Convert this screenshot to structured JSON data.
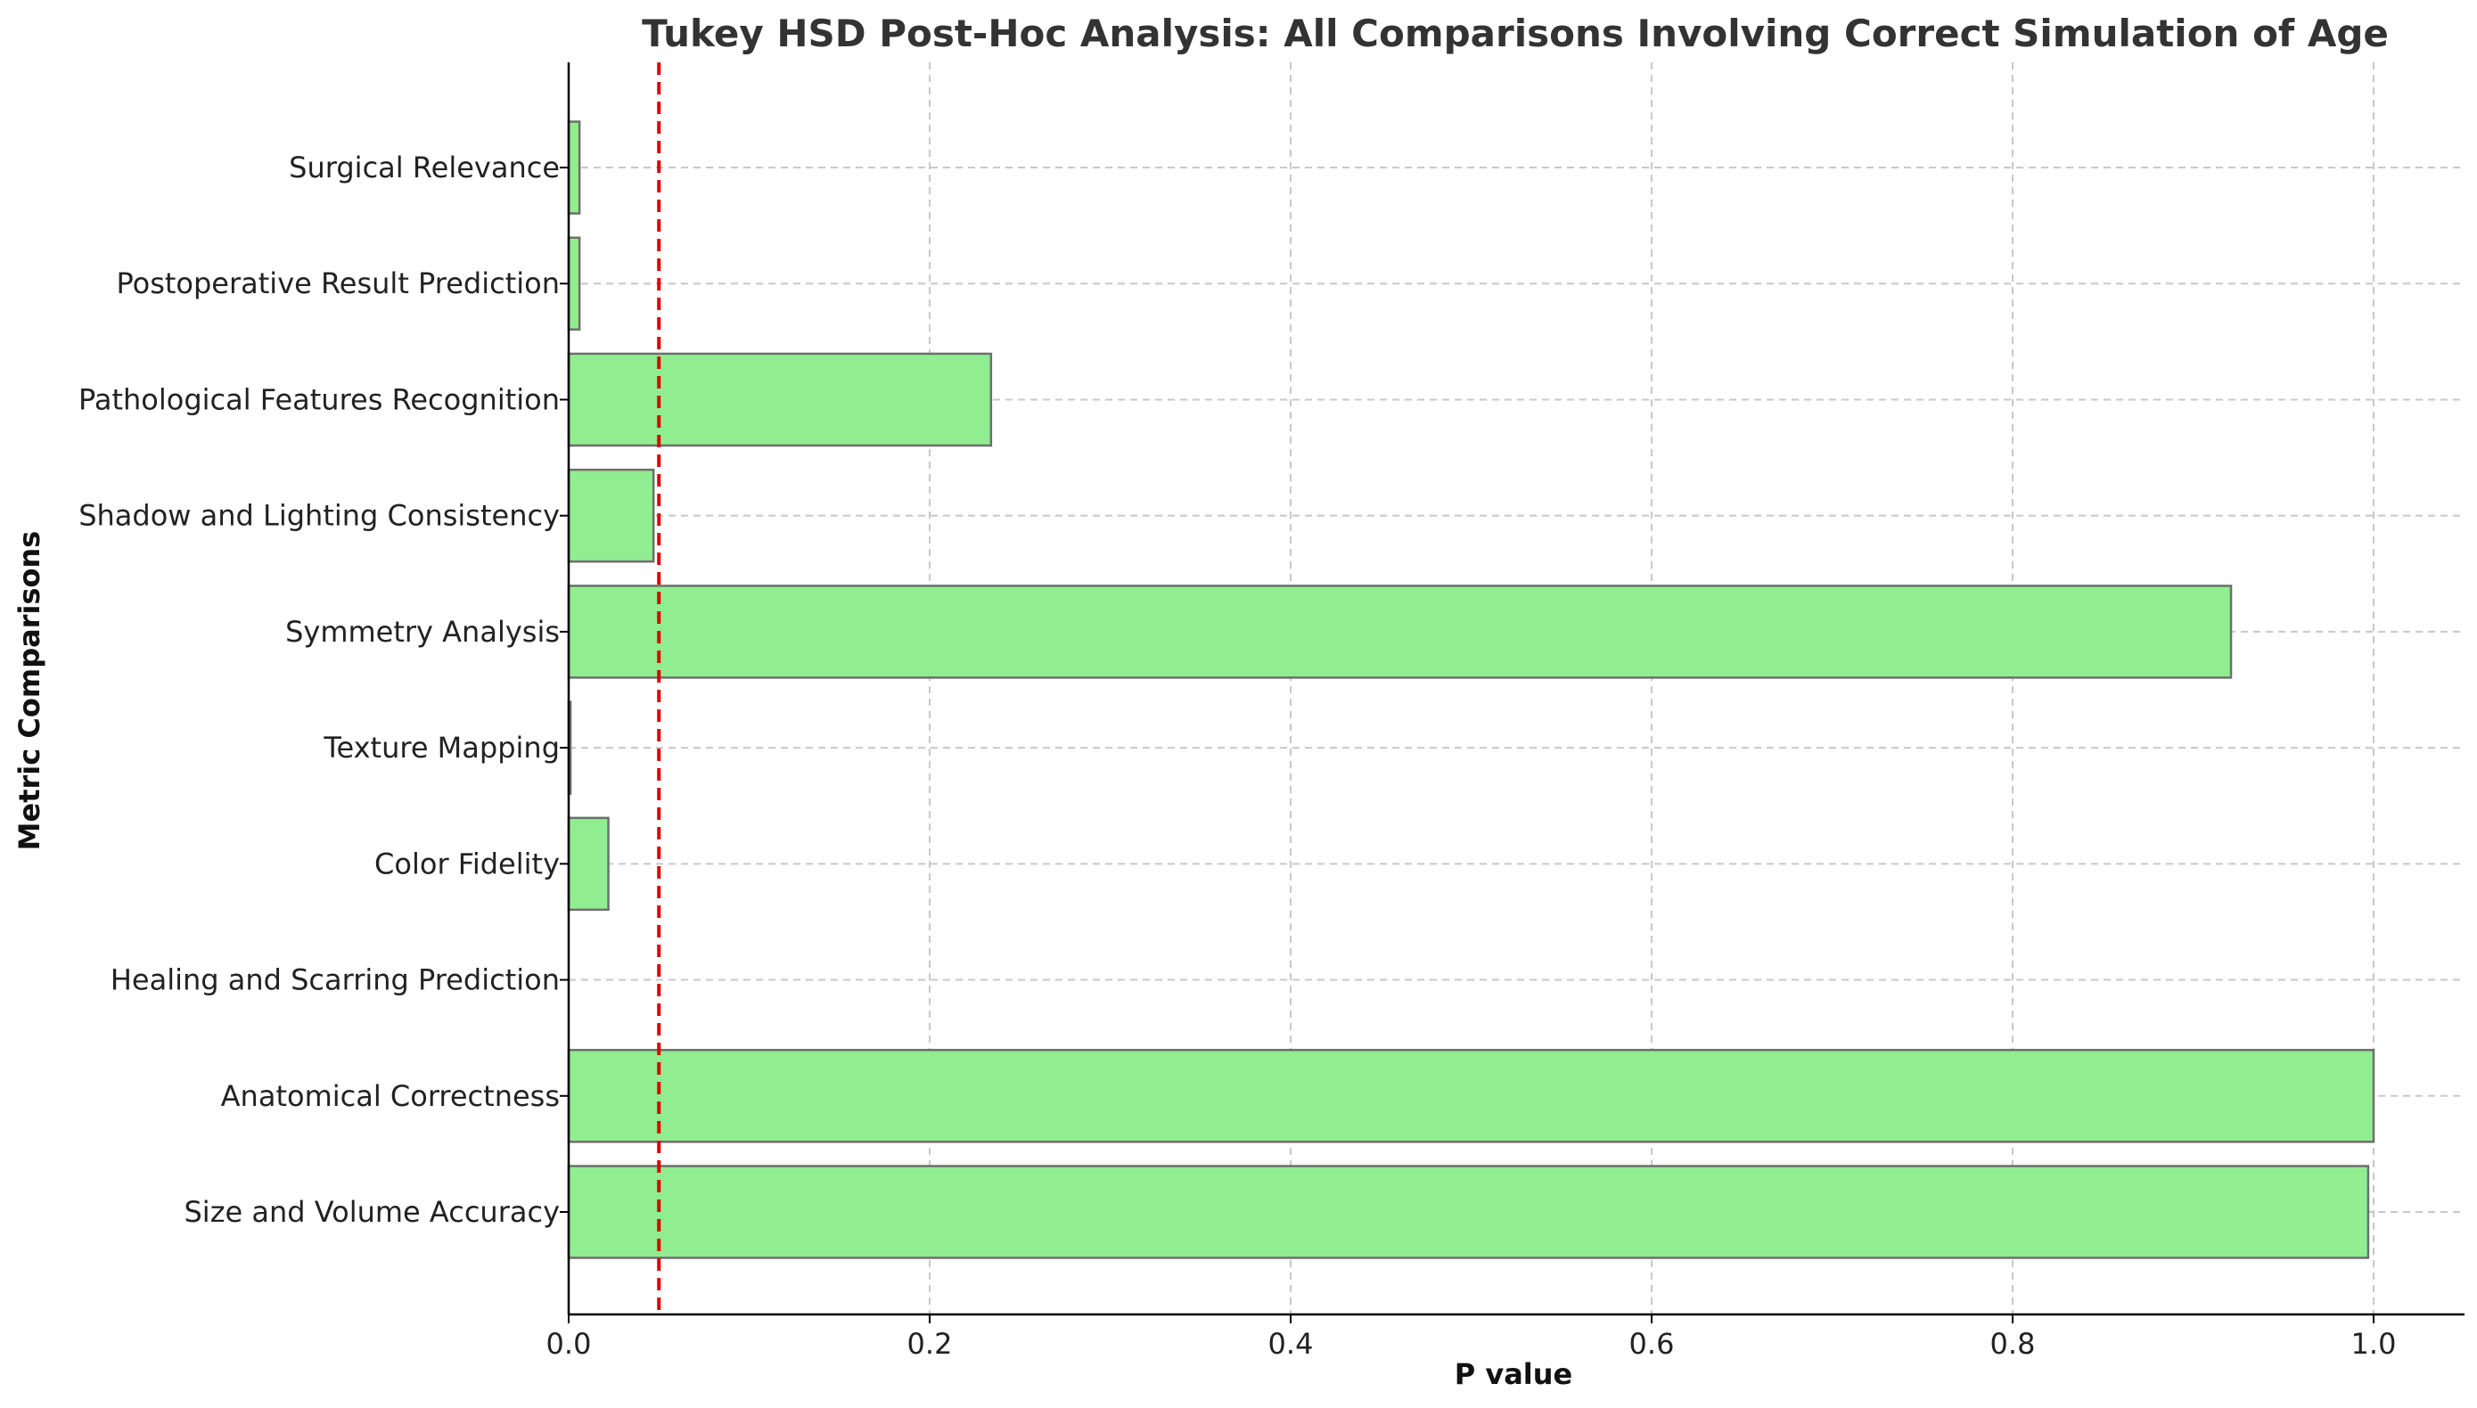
{
  "chart_data": {
    "type": "bar",
    "orientation": "horizontal",
    "title": "Tukey HSD Post-Hoc Analysis: All Comparisons Involving Correct Simulation of Age",
    "xlabel": "P value",
    "ylabel": "Metric Comparisons",
    "categories": [
      "Size and Volume Accuracy",
      "Anatomical Correctness",
      "Healing and Scarring Prediction",
      "Color Fidelity",
      "Texture Mapping",
      "Symmetry Analysis",
      "Shadow and Lighting Consistency",
      "Pathological Features Recognition",
      "Postoperative Result Prediction",
      "Surgical Relevance"
    ],
    "values": [
      0.997,
      1.0,
      0.0,
      0.022,
      0.001,
      0.921,
      0.047,
      0.234,
      0.006,
      0.006
    ],
    "xlim": [
      0,
      1.05
    ],
    "xticks": [
      0.0,
      0.2,
      0.4,
      0.6,
      0.8,
      1.0
    ],
    "xtick_labels": [
      "0.0",
      "0.2",
      "0.4",
      "0.6",
      "0.8",
      "1.0"
    ],
    "threshold": 0.05,
    "grid": true,
    "colors": {
      "bar_fill": "#90ee90",
      "bar_edge": "#6e6e6e",
      "threshold_line": "#dd0000",
      "grid": "#c8c8c8"
    }
  }
}
